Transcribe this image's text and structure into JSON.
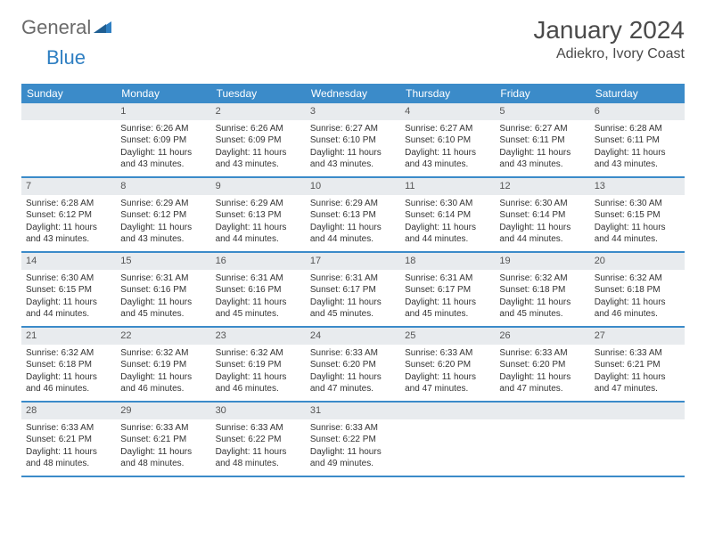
{
  "logo": {
    "general": "General",
    "blue": "Blue"
  },
  "title": "January 2024",
  "location": "Adiekro, Ivory Coast",
  "colors": {
    "header_bg": "#3b8bc9",
    "header_text": "#ffffff",
    "daynum_bg": "#e8ebee",
    "daynum_text": "#555555",
    "row_border": "#3b8bc9",
    "body_text": "#333333",
    "title_text": "#4a4a4a",
    "logo_gray": "#6a6a6a",
    "logo_blue": "#2f7fc2"
  },
  "dow": [
    "Sunday",
    "Monday",
    "Tuesday",
    "Wednesday",
    "Thursday",
    "Friday",
    "Saturday"
  ],
  "weeks": [
    [
      {
        "n": "",
        "sr": "",
        "ss": "",
        "dl": ""
      },
      {
        "n": "1",
        "sr": "6:26 AM",
        "ss": "6:09 PM",
        "dl": "11 hours and 43 minutes."
      },
      {
        "n": "2",
        "sr": "6:26 AM",
        "ss": "6:09 PM",
        "dl": "11 hours and 43 minutes."
      },
      {
        "n": "3",
        "sr": "6:27 AM",
        "ss": "6:10 PM",
        "dl": "11 hours and 43 minutes."
      },
      {
        "n": "4",
        "sr": "6:27 AM",
        "ss": "6:10 PM",
        "dl": "11 hours and 43 minutes."
      },
      {
        "n": "5",
        "sr": "6:27 AM",
        "ss": "6:11 PM",
        "dl": "11 hours and 43 minutes."
      },
      {
        "n": "6",
        "sr": "6:28 AM",
        "ss": "6:11 PM",
        "dl": "11 hours and 43 minutes."
      }
    ],
    [
      {
        "n": "7",
        "sr": "6:28 AM",
        "ss": "6:12 PM",
        "dl": "11 hours and 43 minutes."
      },
      {
        "n": "8",
        "sr": "6:29 AM",
        "ss": "6:12 PM",
        "dl": "11 hours and 43 minutes."
      },
      {
        "n": "9",
        "sr": "6:29 AM",
        "ss": "6:13 PM",
        "dl": "11 hours and 44 minutes."
      },
      {
        "n": "10",
        "sr": "6:29 AM",
        "ss": "6:13 PM",
        "dl": "11 hours and 44 minutes."
      },
      {
        "n": "11",
        "sr": "6:30 AM",
        "ss": "6:14 PM",
        "dl": "11 hours and 44 minutes."
      },
      {
        "n": "12",
        "sr": "6:30 AM",
        "ss": "6:14 PM",
        "dl": "11 hours and 44 minutes."
      },
      {
        "n": "13",
        "sr": "6:30 AM",
        "ss": "6:15 PM",
        "dl": "11 hours and 44 minutes."
      }
    ],
    [
      {
        "n": "14",
        "sr": "6:30 AM",
        "ss": "6:15 PM",
        "dl": "11 hours and 44 minutes."
      },
      {
        "n": "15",
        "sr": "6:31 AM",
        "ss": "6:16 PM",
        "dl": "11 hours and 45 minutes."
      },
      {
        "n": "16",
        "sr": "6:31 AM",
        "ss": "6:16 PM",
        "dl": "11 hours and 45 minutes."
      },
      {
        "n": "17",
        "sr": "6:31 AM",
        "ss": "6:17 PM",
        "dl": "11 hours and 45 minutes."
      },
      {
        "n": "18",
        "sr": "6:31 AM",
        "ss": "6:17 PM",
        "dl": "11 hours and 45 minutes."
      },
      {
        "n": "19",
        "sr": "6:32 AM",
        "ss": "6:18 PM",
        "dl": "11 hours and 45 minutes."
      },
      {
        "n": "20",
        "sr": "6:32 AM",
        "ss": "6:18 PM",
        "dl": "11 hours and 46 minutes."
      }
    ],
    [
      {
        "n": "21",
        "sr": "6:32 AM",
        "ss": "6:18 PM",
        "dl": "11 hours and 46 minutes."
      },
      {
        "n": "22",
        "sr": "6:32 AM",
        "ss": "6:19 PM",
        "dl": "11 hours and 46 minutes."
      },
      {
        "n": "23",
        "sr": "6:32 AM",
        "ss": "6:19 PM",
        "dl": "11 hours and 46 minutes."
      },
      {
        "n": "24",
        "sr": "6:33 AM",
        "ss": "6:20 PM",
        "dl": "11 hours and 47 minutes."
      },
      {
        "n": "25",
        "sr": "6:33 AM",
        "ss": "6:20 PM",
        "dl": "11 hours and 47 minutes."
      },
      {
        "n": "26",
        "sr": "6:33 AM",
        "ss": "6:20 PM",
        "dl": "11 hours and 47 minutes."
      },
      {
        "n": "27",
        "sr": "6:33 AM",
        "ss": "6:21 PM",
        "dl": "11 hours and 47 minutes."
      }
    ],
    [
      {
        "n": "28",
        "sr": "6:33 AM",
        "ss": "6:21 PM",
        "dl": "11 hours and 48 minutes."
      },
      {
        "n": "29",
        "sr": "6:33 AM",
        "ss": "6:21 PM",
        "dl": "11 hours and 48 minutes."
      },
      {
        "n": "30",
        "sr": "6:33 AM",
        "ss": "6:22 PM",
        "dl": "11 hours and 48 minutes."
      },
      {
        "n": "31",
        "sr": "6:33 AM",
        "ss": "6:22 PM",
        "dl": "11 hours and 49 minutes."
      },
      {
        "n": "",
        "sr": "",
        "ss": "",
        "dl": ""
      },
      {
        "n": "",
        "sr": "",
        "ss": "",
        "dl": ""
      },
      {
        "n": "",
        "sr": "",
        "ss": "",
        "dl": ""
      }
    ]
  ],
  "labels": {
    "sunrise": "Sunrise:",
    "sunset": "Sunset:",
    "daylight": "Daylight:"
  }
}
